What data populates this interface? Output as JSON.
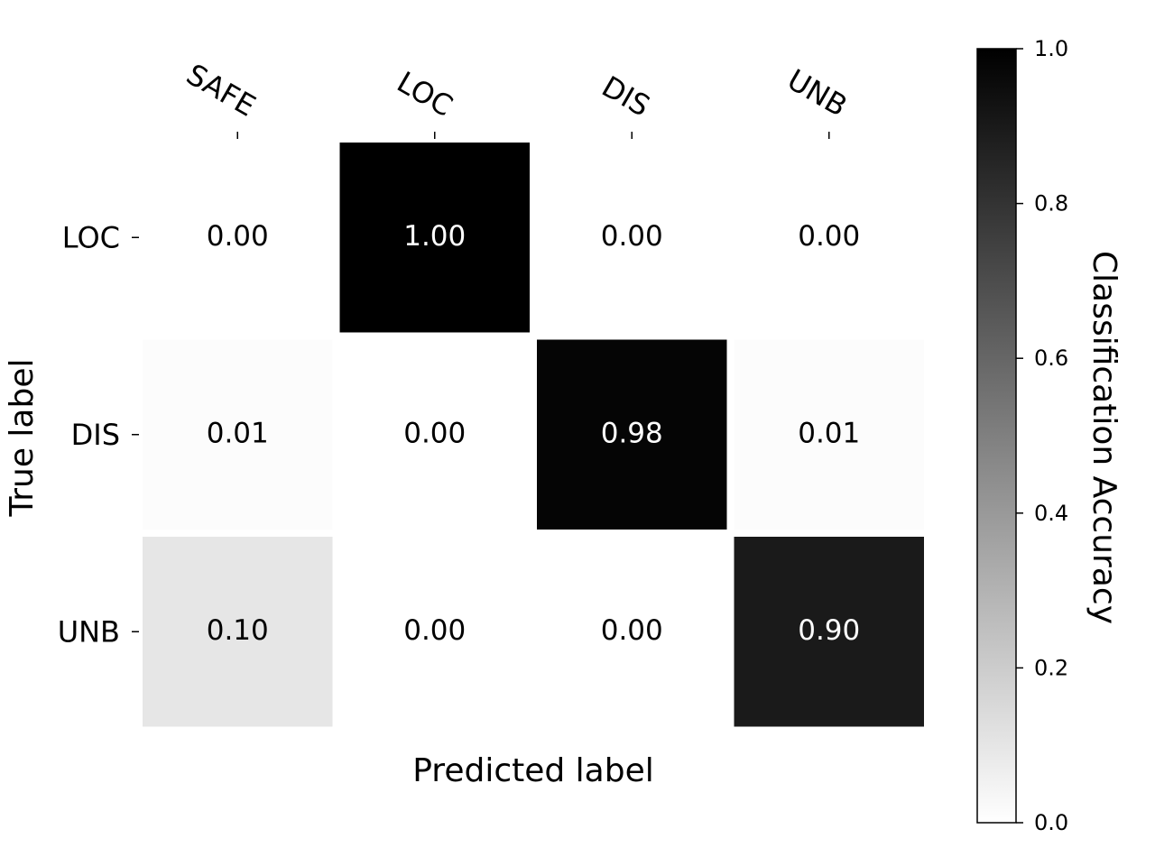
{
  "chart_data": {
    "type": "heatmap",
    "x_label": "Predicted label",
    "y_label": "True label",
    "colorbar_label": "Classification Accuracy",
    "x_categories": [
      "SAFE",
      "LOC",
      "DIS",
      "UNB"
    ],
    "y_categories": [
      "LOC",
      "DIS",
      "UNB"
    ],
    "values": [
      [
        0,
        1,
        0,
        0
      ],
      [
        0.01,
        0,
        0.98,
        0.01
      ],
      [
        0.1,
        0,
        0,
        0.9
      ]
    ],
    "value_labels": [
      [
        "0.00",
        "1.00",
        "0.00",
        "0.00"
      ],
      [
        "0.01",
        "0.00",
        "0.98",
        "0.01"
      ],
      [
        "0.10",
        "0.00",
        "0.00",
        "0.90"
      ]
    ],
    "colormap": [
      "#ffffff",
      "#000000"
    ],
    "zlim": [
      0,
      1
    ],
    "zticks": [
      {
        "value": 0,
        "label": "0.0"
      },
      0.2,
      0.4,
      0.6,
      0.8,
      {
        "value": 1,
        "label": "1.0"
      }
    ]
  }
}
